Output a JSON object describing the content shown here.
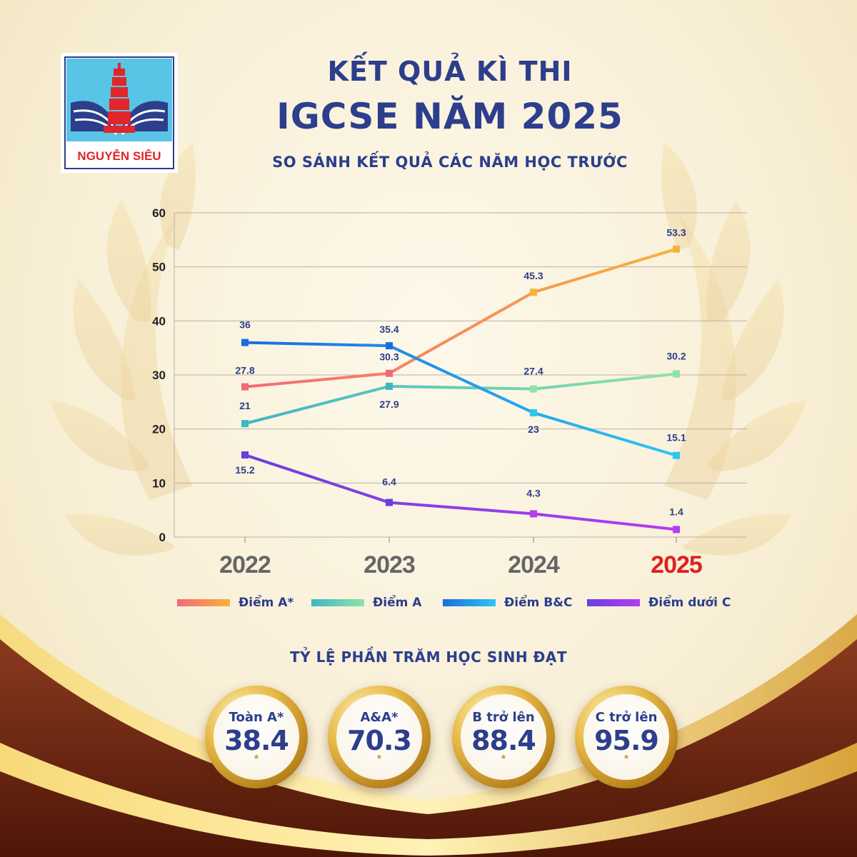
{
  "header": {
    "title_line1": "KẾT QUẢ KÌ THI",
    "title_line2": "IGCSE NĂM 2025",
    "subtitle": "SO SÁNH KẾT QUẢ CÁC NĂM HỌC TRƯỚC"
  },
  "logo": {
    "text": "NGUYỄN SIÊU"
  },
  "colors": {
    "title": "#2c3e8c",
    "highlight_year": "#e02020",
    "year_labels": "#666666",
    "a_star": [
      "#f4697a",
      "#f7b23c"
    ],
    "a": [
      "#3fb6c4",
      "#8fe3a8"
    ],
    "bc": [
      "#1a6de0",
      "#2cc6f2"
    ],
    "below_c": [
      "#6a3fe0",
      "#b53cf0"
    ]
  },
  "chart_data": {
    "type": "line",
    "categories": [
      "2022",
      "2023",
      "2024",
      "2025"
    ],
    "highlight_category": "2025",
    "ylim": [
      0,
      60
    ],
    "yticks": [
      0,
      10,
      20,
      30,
      40,
      50,
      60
    ],
    "grid": true,
    "legend_position": "bottom",
    "series": [
      {
        "name": "Điểm A*",
        "values": [
          27.8,
          30.3,
          45.3,
          53.3
        ],
        "labels": [
          "27.8",
          "30.3",
          "45.3",
          "53.3"
        ]
      },
      {
        "name": "Điểm A",
        "values": [
          21,
          27.9,
          27.4,
          30.2
        ],
        "labels": [
          "21",
          "27.9",
          "27.4",
          "30.2"
        ]
      },
      {
        "name": "Điểm B&C",
        "values": [
          36,
          35.4,
          23,
          15.1
        ],
        "labels": [
          "36",
          "35.4",
          "23",
          "15.1"
        ]
      },
      {
        "name": "Điểm dưới C",
        "values": [
          15.2,
          6.4,
          4.3,
          1.4
        ],
        "labels": [
          "15.2",
          "6.4",
          "4.3",
          "1.4"
        ]
      }
    ]
  },
  "stats": {
    "title": "TỶ LỆ PHẦN TRĂM HỌC SINH ĐẠT",
    "items": [
      {
        "label": "Toàn A*",
        "value": "38.4"
      },
      {
        "label": "A&A*",
        "value": "70.3"
      },
      {
        "label": "B trở lên",
        "value": "88.4"
      },
      {
        "label": "C trở lên",
        "value": "95.9"
      }
    ]
  }
}
